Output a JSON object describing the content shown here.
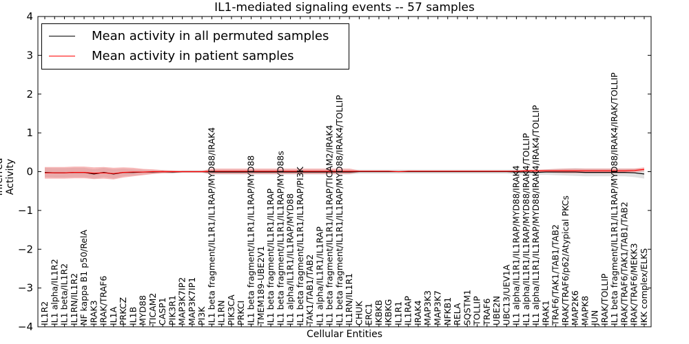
{
  "chart_data": {
    "type": "line",
    "title": "IL1-mediated signaling events -- 57 samples",
    "xlabel": "Cellular Entities",
    "ylabel": "Inferred Activity",
    "ylim": [
      -4,
      4
    ],
    "yticks": [
      -4,
      -3,
      -2,
      -1,
      0,
      1,
      2,
      3,
      4
    ],
    "ytick_labels": [
      "−4",
      "−3",
      "−2",
      "−1",
      "0",
      "1",
      "2",
      "3",
      "4"
    ],
    "legend_position": "top-left",
    "categories": [
      "IL1R2",
      "IL1 alpha/IL1R2",
      "IL1 beta/IL1R2",
      "IL1RN/IL1R2",
      "NF kappa B1 p50/RelA",
      "IRAK3",
      "IRAK/TRAF6",
      "IL1A",
      "PRKCZ",
      "IL1B",
      "MYD88",
      "TICAM2",
      "CASP1",
      "PIK3R1",
      "MAP3K7IP2",
      "MAP3K7IP1",
      "PI3K",
      "IL1 beta fragment/IL1R1/IL1RAP/MYD88/IRAK4",
      "IL1RN",
      "PIK3CA",
      "PRKCI",
      "IL1 beta fragment/IL1R1/IL1RAP/MYD88",
      "TMEM189-UBE2V1",
      "IL1 beta fragment/IL1R1/IL1RAP",
      "IL1 beta fragment/IL1R1/IL1RAP/MYD88s",
      "IL1 alpha/IL1R1/IL1RAP/MYD88",
      "IL1 beta fragment/IL1R1/IL1RAP/PI3K",
      "TAK1/TAB1/TAB2",
      "IL1 alpha/IL1R1/IL1RAP",
      "IL1 beta fragment/IL1R1/IL1RAP/TICAM2/IRAK4",
      "IL1 beta fragment/IL1R1/IL1RAP/MYD88/IRAK4/TOLLIP",
      "IL1RN/IL1R1",
      "CHUK",
      "ERC1",
      "IKBKB",
      "IKBKG",
      "IL1R1",
      "IL1RAP",
      "IRAK4",
      "MAP3K3",
      "MAP3K7",
      "NFKB1",
      "RELA",
      "SQSTM1",
      "TOLLIP",
      "TRAF6",
      "UBE2N",
      "UBC13/UEV1A",
      "IL1 alpha/IL1R1/IL1RAP/MYD88/IRAK4",
      "IL1 alpha/IL1R1/IL1RAP/MYD88/IRAK4/TOLLIP",
      "IL1 alpha/IL1R1/IL1RAP/MYD88/IRAK4/IRAK4/TOLLIP",
      "IRAK1",
      "TRAF6/TAK1/TAB1/TAB2",
      "IRAK/TRAF6/p62/Atypical PKCs",
      "MAP2K6",
      "MAPK8",
      "JUN",
      "IRAK/TOLLIP",
      "IL1 beta fragment/IL1R1/IL1RAP/MYD88/IRAK4/IRAK/TOLLIP",
      "IRAK/TRAF6/TAK1/TAB1/TAB2",
      "IRAK/TRAF6/MEKK3",
      "IKK complex/ELKS"
    ],
    "series": [
      {
        "name": "Mean activity in all permuted samples",
        "color": "#000000",
        "band_color": "#c8c8c8",
        "values": [
          -0.02,
          -0.03,
          -0.03,
          -0.02,
          -0.02,
          -0.06,
          -0.02,
          -0.06,
          -0.02,
          -0.02,
          -0.01,
          -0.01,
          0.0,
          -0.01,
          0.0,
          0.0,
          0.0,
          -0.01,
          -0.01,
          -0.01,
          -0.01,
          -0.01,
          -0.01,
          -0.01,
          -0.01,
          -0.01,
          -0.01,
          -0.01,
          -0.01,
          -0.01,
          -0.01,
          -0.01,
          0.0,
          0.0,
          0.0,
          0.0,
          0.0,
          0.0,
          0.0,
          0.0,
          0.0,
          0.0,
          0.0,
          0.0,
          0.0,
          0.0,
          0.0,
          0.0,
          -0.01,
          -0.01,
          -0.02,
          -0.01,
          -0.01,
          -0.01,
          -0.01,
          -0.02,
          -0.02,
          -0.02,
          -0.02,
          -0.02,
          -0.03,
          -0.06
        ],
        "band_half_width": [
          0.12,
          0.12,
          0.12,
          0.12,
          0.12,
          0.12,
          0.12,
          0.12,
          0.1,
          0.08,
          0.06,
          0.05,
          0.04,
          0.04,
          0.03,
          0.03,
          0.03,
          0.06,
          0.06,
          0.06,
          0.06,
          0.06,
          0.06,
          0.06,
          0.06,
          0.06,
          0.06,
          0.06,
          0.06,
          0.06,
          0.06,
          0.06,
          0.05,
          0.05,
          0.05,
          0.05,
          0.05,
          0.05,
          0.05,
          0.05,
          0.05,
          0.05,
          0.05,
          0.05,
          0.05,
          0.05,
          0.05,
          0.05,
          0.06,
          0.06,
          0.06,
          0.07,
          0.08,
          0.09,
          0.1,
          0.1,
          0.1,
          0.1,
          0.1,
          0.1,
          0.11,
          0.12
        ]
      },
      {
        "name": "Mean activity in patient samples",
        "color": "#ff0000",
        "band_color": "#f08080",
        "values": [
          -0.03,
          -0.03,
          -0.03,
          -0.02,
          -0.02,
          -0.04,
          -0.03,
          -0.05,
          -0.02,
          -0.01,
          -0.01,
          0.0,
          0.0,
          0.0,
          0.0,
          0.0,
          0.0,
          0.01,
          0.01,
          0.01,
          0.01,
          0.01,
          0.01,
          0.01,
          0.01,
          0.01,
          0.01,
          0.01,
          0.01,
          0.01,
          0.01,
          0.01,
          0.01,
          0.01,
          0.01,
          0.01,
          0.0,
          0.01,
          0.01,
          0.01,
          0.01,
          0.01,
          0.01,
          0.01,
          0.01,
          0.01,
          0.01,
          0.01,
          0.01,
          0.02,
          0.02,
          0.02,
          0.02,
          0.02,
          0.02,
          0.02,
          0.02,
          0.02,
          0.02,
          0.02,
          0.03,
          0.06
        ],
        "band_half_width": [
          0.15,
          0.15,
          0.15,
          0.15,
          0.15,
          0.15,
          0.15,
          0.15,
          0.13,
          0.11,
          0.08,
          0.06,
          0.04,
          0.03,
          0.02,
          0.02,
          0.02,
          0.07,
          0.07,
          0.07,
          0.07,
          0.07,
          0.07,
          0.07,
          0.07,
          0.07,
          0.07,
          0.07,
          0.07,
          0.07,
          0.07,
          0.07,
          0.02,
          0.02,
          0.02,
          0.02,
          0.01,
          0.02,
          0.02,
          0.02,
          0.02,
          0.02,
          0.02,
          0.02,
          0.02,
          0.02,
          0.02,
          0.02,
          0.02,
          0.03,
          0.03,
          0.04,
          0.05,
          0.06,
          0.06,
          0.06,
          0.06,
          0.06,
          0.06,
          0.06,
          0.05,
          0.05
        ]
      }
    ]
  }
}
